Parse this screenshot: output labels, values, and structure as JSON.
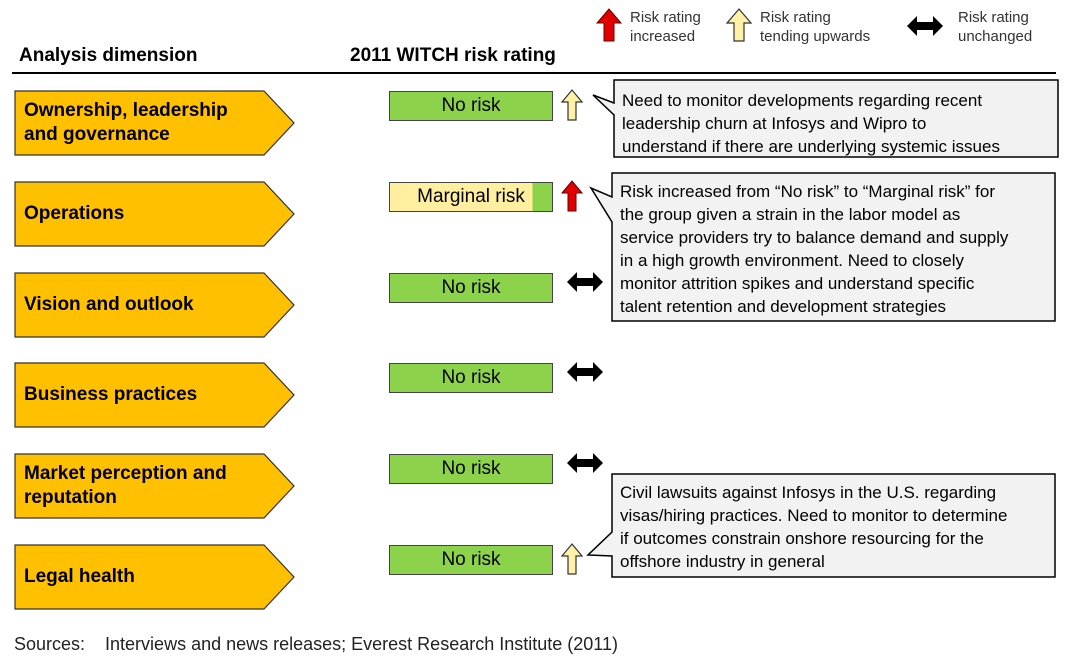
{
  "legend": [
    {
      "icon": "red-up-arrow-icon",
      "line1": "Risk rating",
      "line2": "increased",
      "color": "#e00000"
    },
    {
      "icon": "yellow-up-arrow-icon",
      "line1": "Risk rating",
      "line2": "tending upwards",
      "color": "#fff2a8"
    },
    {
      "icon": "black-double-arrow-icon",
      "line1": "Risk rating",
      "line2": "unchanged",
      "color": "#000000"
    }
  ],
  "headers": {
    "dimension": "Analysis dimension",
    "rating": "2011 WITCH risk rating"
  },
  "rows": [
    {
      "dimension_line1": "Ownership, leadership",
      "dimension_line2": "and governance",
      "rating": "No risk",
      "trend": "tending-upwards"
    },
    {
      "dimension_line1": "Operations",
      "dimension_line2": "",
      "rating": "Marginal risk",
      "trend": "increased"
    },
    {
      "dimension_line1": "Vision and outlook",
      "dimension_line2": "",
      "rating": "No risk",
      "trend": "unchanged"
    },
    {
      "dimension_line1": "Business practices",
      "dimension_line2": "",
      "rating": "No risk",
      "trend": "unchanged"
    },
    {
      "dimension_line1": "Market perception and",
      "dimension_line2": "reputation",
      "rating": "No risk",
      "trend": "unchanged"
    },
    {
      "dimension_line1": "Legal health",
      "dimension_line2": "",
      "rating": "No risk",
      "trend": "tending-upwards"
    }
  ],
  "callouts": [
    {
      "lines": [
        "Need to monitor developments regarding recent",
        "leadership churn at Infosys and Wipro to",
        "understand if there are underlying systemic issues"
      ]
    },
    {
      "lines": [
        "Risk increased from “No risk” to “Marginal risk” for",
        "the group given a strain in the labor model as",
        "service providers try to balance demand and supply",
        "in a high growth environment. Need to closely",
        "monitor attrition spikes and understand specific",
        "talent retention and development strategies"
      ]
    },
    {
      "lines": [
        "Civil lawsuits against Infosys in the U.S. regarding",
        "visas/hiring practices. Need to monitor to determine",
        "if  outcomes constrain onshore resourcing for the",
        "offshore industry in general"
      ]
    }
  ],
  "colors": {
    "dimension_fill": "#ffc000",
    "no_risk": "#8cd24a",
    "marginal_risk": "#ffef9e",
    "callout_fill": "#f2f2f2"
  },
  "source": "Sources:    Interviews and news releases; Everest Research Institute (2011)"
}
